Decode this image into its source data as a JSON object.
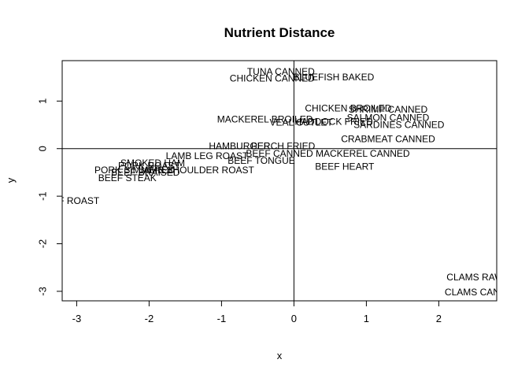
{
  "chart_data": {
    "type": "scatter",
    "title": "Nutrient Distance",
    "xlabel": "x",
    "ylabel": "y",
    "xlim": [
      -3.2,
      2.8
    ],
    "ylim": [
      -3.2,
      1.85
    ],
    "xticks": [
      -3,
      -2,
      -1,
      0,
      1,
      2
    ],
    "yticks": [
      -3,
      -2,
      -1,
      0,
      1
    ],
    "grid": false,
    "reference_lines": {
      "x": 0,
      "y": 0
    },
    "points": [
      {
        "label": "TUNA CANNED",
        "x": -0.18,
        "y": 1.62
      },
      {
        "label": "CHICKEN CANNED",
        "x": -0.3,
        "y": 1.48
      },
      {
        "label": "BLUEFISH BAKED",
        "x": 0.55,
        "y": 1.5
      },
      {
        "label": "CHICKEN BROILED",
        "x": 0.75,
        "y": 0.85
      },
      {
        "label": "SHRIMP CANNED",
        "x": 1.3,
        "y": 0.82
      },
      {
        "label": "SALMON CANNED",
        "x": 1.3,
        "y": 0.65
      },
      {
        "label": "MACKEREL BROILED",
        "x": -0.4,
        "y": 0.62
      },
      {
        "label": "VEAL CUTLET",
        "x": 0.1,
        "y": 0.55
      },
      {
        "label": "HADDOCK FRIED",
        "x": 0.55,
        "y": 0.57
      },
      {
        "label": "SARDINES CANNED",
        "x": 1.45,
        "y": 0.5
      },
      {
        "label": "CRABMEAT CANNED",
        "x": 1.3,
        "y": 0.2
      },
      {
        "label": "HAMBURGER",
        "x": -0.75,
        "y": 0.05
      },
      {
        "label": "PERCH FRIED",
        "x": -0.15,
        "y": 0.05
      },
      {
        "label": "LAMB LEG ROAST",
        "x": -1.2,
        "y": -0.15
      },
      {
        "label": "BEEF CANNED",
        "x": -0.2,
        "y": -0.1
      },
      {
        "label": "MACKEREL CANNED",
        "x": 0.95,
        "y": -0.1
      },
      {
        "label": "BEEF TONGUE",
        "x": -0.45,
        "y": -0.25
      },
      {
        "label": "BEEF HEART",
        "x": 0.7,
        "y": -0.38
      },
      {
        "label": "SMOKED HAM",
        "x": -1.95,
        "y": -0.3
      },
      {
        "label": "PORK ROAST",
        "x": -2.0,
        "y": -0.36
      },
      {
        "label": "PORK SIMMERED",
        "x": -2.2,
        "y": -0.45
      },
      {
        "label": "LAMB SHOULDER ROAST",
        "x": -1.35,
        "y": -0.45
      },
      {
        "label": "BEEF BRAISED",
        "x": -2.05,
        "y": -0.5
      },
      {
        "label": "BEEF STEAK",
        "x": -2.3,
        "y": -0.62
      },
      {
        "label": "BEEF ROAST",
        "x": -3.1,
        "y": -1.1
      },
      {
        "label": "CLAMS RAW",
        "x": 2.5,
        "y": -2.7
      },
      {
        "label": "CLAMS CANNED",
        "x": 2.6,
        "y": -3.02
      }
    ]
  }
}
